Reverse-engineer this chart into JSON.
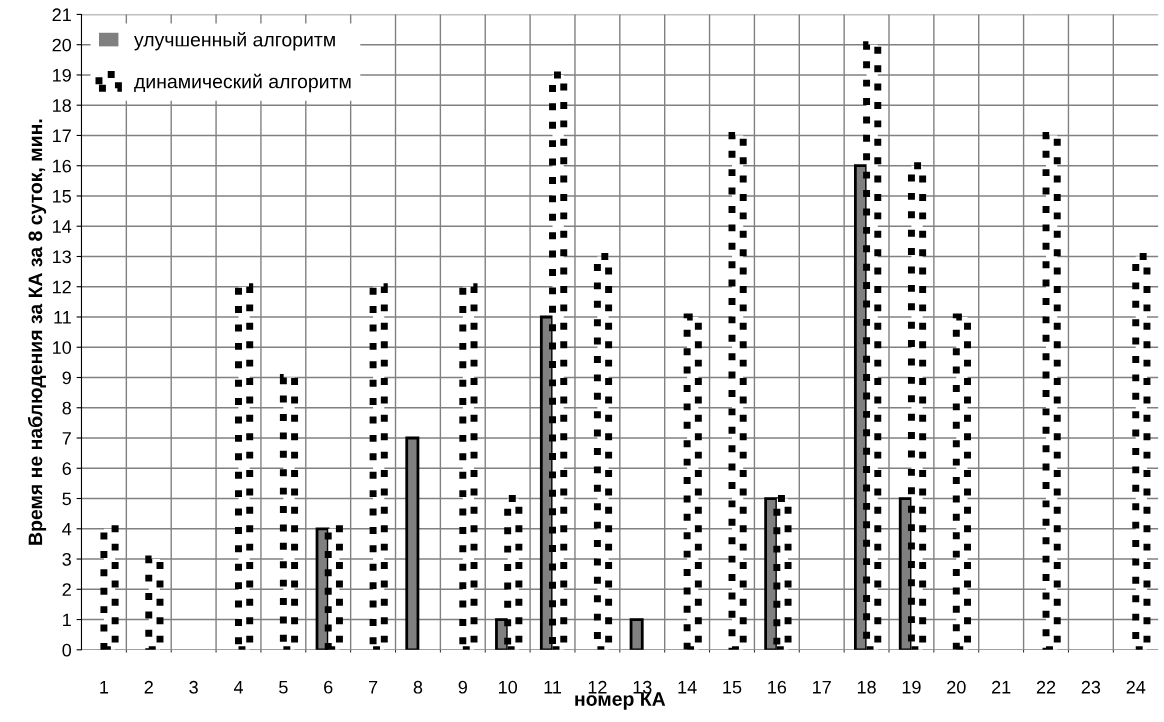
{
  "chart_data": {
    "type": "bar",
    "xlabel": "номер КА",
    "ylabel": "Время не наблюдения за КА за 8 суток, мин.",
    "categories": [
      "1",
      "2",
      "3",
      "4",
      "5",
      "6",
      "7",
      "8",
      "9",
      "10",
      "11",
      "12",
      "13",
      "14",
      "15",
      "16",
      "17",
      "18",
      "19",
      "20",
      "21",
      "22",
      "23",
      "24"
    ],
    "series": [
      {
        "name": "улучшенный алгоритм",
        "color": "#808080",
        "values": [
          0,
          0,
          0,
          0,
          0,
          4,
          0,
          7,
          0,
          1,
          11,
          0,
          1,
          0,
          0,
          5,
          0,
          16,
          5,
          0,
          0,
          0,
          0,
          0
        ]
      },
      {
        "name": "динамический алгоритм",
        "color": "#ffffff",
        "line_style": "dotted",
        "values": [
          4,
          3,
          0,
          12,
          9,
          4,
          12,
          0,
          12,
          5,
          19,
          13,
          0,
          11,
          17,
          5,
          0,
          20,
          16,
          11,
          0,
          17,
          0,
          13
        ]
      }
    ],
    "ylim": [
      0,
      21
    ],
    "yticks": [
      0,
      1,
      2,
      3,
      4,
      5,
      6,
      7,
      8,
      9,
      10,
      11,
      12,
      13,
      14,
      15,
      16,
      17,
      18,
      19,
      20,
      21
    ],
    "grid": true,
    "legend": "top left"
  }
}
